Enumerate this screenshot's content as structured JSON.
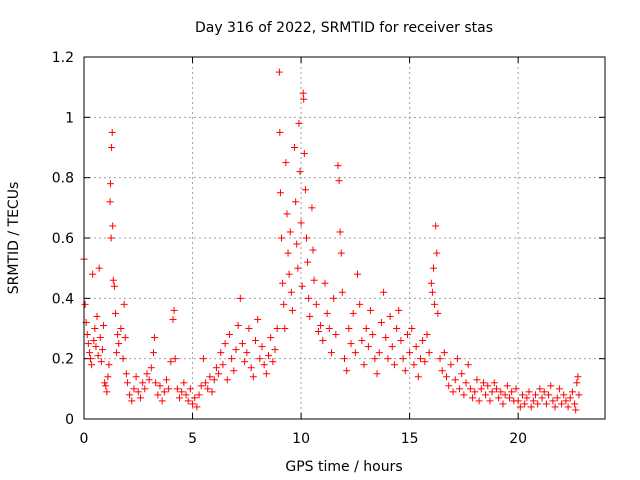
{
  "chart_data": {
    "type": "scatter",
    "title": "Day 316 of 2022, SRMTID for receiver stas",
    "xlabel": "GPS time / hours",
    "ylabel": "SRMTID / TECUs",
    "xlim": [
      0,
      24
    ],
    "ylim": [
      0,
      1.2
    ],
    "xticks": [
      0,
      5,
      10,
      15,
      20
    ],
    "xtick_labels": [
      "0",
      "5",
      "10",
      "15",
      "20"
    ],
    "yticks": [
      0,
      0.2,
      0.4,
      0.6,
      0.8,
      1.0,
      1.2
    ],
    "ytick_labels": [
      "0",
      "0.2",
      "0.4",
      "0.6",
      "0.8",
      "1",
      "1.2"
    ],
    "grid": true,
    "marker": "+",
    "color": "#ff0000",
    "series": [
      {
        "name": "SRMTID",
        "points": [
          [
            0.0,
            0.53
          ],
          [
            0.05,
            0.38
          ],
          [
            0.1,
            0.32
          ],
          [
            0.15,
            0.28
          ],
          [
            0.2,
            0.25
          ],
          [
            0.25,
            0.22
          ],
          [
            0.3,
            0.2
          ],
          [
            0.35,
            0.18
          ],
          [
            0.4,
            0.48
          ],
          [
            0.45,
            0.26
          ],
          [
            0.5,
            0.3
          ],
          [
            0.55,
            0.24
          ],
          [
            0.6,
            0.34
          ],
          [
            0.65,
            0.21
          ],
          [
            0.7,
            0.5
          ],
          [
            0.75,
            0.27
          ],
          [
            0.8,
            0.19
          ],
          [
            0.85,
            0.23
          ],
          [
            0.9,
            0.31
          ],
          [
            0.95,
            0.12
          ],
          [
            1.0,
            0.11
          ],
          [
            1.05,
            0.09
          ],
          [
            1.1,
            0.14
          ],
          [
            1.15,
            0.18
          ],
          [
            1.2,
            0.72
          ],
          [
            1.22,
            0.78
          ],
          [
            1.25,
            0.6
          ],
          [
            1.27,
            0.9
          ],
          [
            1.3,
            0.95
          ],
          [
            1.32,
            0.64
          ],
          [
            1.35,
            0.46
          ],
          [
            1.4,
            0.44
          ],
          [
            1.45,
            0.35
          ],
          [
            1.5,
            0.22
          ],
          [
            1.55,
            0.28
          ],
          [
            1.6,
            0.25
          ],
          [
            1.7,
            0.3
          ],
          [
            1.8,
            0.2
          ],
          [
            1.85,
            0.38
          ],
          [
            1.9,
            0.27
          ],
          [
            1.95,
            0.15
          ],
          [
            2.0,
            0.12
          ],
          [
            2.1,
            0.08
          ],
          [
            2.2,
            0.06
          ],
          [
            2.3,
            0.1
          ],
          [
            2.4,
            0.14
          ],
          [
            2.5,
            0.09
          ],
          [
            2.6,
            0.07
          ],
          [
            2.7,
            0.12
          ],
          [
            2.8,
            0.1
          ],
          [
            2.9,
            0.15
          ],
          [
            3.0,
            0.13
          ],
          [
            3.1,
            0.17
          ],
          [
            3.2,
            0.22
          ],
          [
            3.25,
            0.27
          ],
          [
            3.3,
            0.12
          ],
          [
            3.4,
            0.08
          ],
          [
            3.5,
            0.11
          ],
          [
            3.6,
            0.06
          ],
          [
            3.7,
            0.09
          ],
          [
            3.8,
            0.13
          ],
          [
            3.9,
            0.1
          ],
          [
            4.0,
            0.19
          ],
          [
            4.1,
            0.33
          ],
          [
            4.15,
            0.36
          ],
          [
            4.2,
            0.2
          ],
          [
            4.3,
            0.1
          ],
          [
            4.4,
            0.07
          ],
          [
            4.5,
            0.09
          ],
          [
            4.6,
            0.12
          ],
          [
            4.7,
            0.08
          ],
          [
            4.8,
            0.06
          ],
          [
            4.9,
            0.1
          ],
          [
            5.0,
            0.05
          ],
          [
            5.1,
            0.07
          ],
          [
            5.2,
            0.04
          ],
          [
            5.3,
            0.08
          ],
          [
            5.4,
            0.11
          ],
          [
            5.5,
            0.2
          ],
          [
            5.6,
            0.12
          ],
          [
            5.7,
            0.1
          ],
          [
            5.8,
            0.14
          ],
          [
            5.9,
            0.09
          ],
          [
            6.0,
            0.13
          ],
          [
            6.1,
            0.17
          ],
          [
            6.2,
            0.15
          ],
          [
            6.3,
            0.22
          ],
          [
            6.4,
            0.18
          ],
          [
            6.5,
            0.25
          ],
          [
            6.6,
            0.13
          ],
          [
            6.7,
            0.28
          ],
          [
            6.8,
            0.2
          ],
          [
            6.9,
            0.16
          ],
          [
            7.0,
            0.23
          ],
          [
            7.1,
            0.31
          ],
          [
            7.2,
            0.4
          ],
          [
            7.3,
            0.25
          ],
          [
            7.4,
            0.19
          ],
          [
            7.5,
            0.22
          ],
          [
            7.6,
            0.3
          ],
          [
            7.7,
            0.17
          ],
          [
            7.8,
            0.14
          ],
          [
            7.9,
            0.26
          ],
          [
            8.0,
            0.33
          ],
          [
            8.1,
            0.2
          ],
          [
            8.2,
            0.24
          ],
          [
            8.3,
            0.18
          ],
          [
            8.4,
            0.15
          ],
          [
            8.5,
            0.21
          ],
          [
            8.6,
            0.27
          ],
          [
            8.7,
            0.19
          ],
          [
            8.8,
            0.23
          ],
          [
            8.9,
            0.3
          ],
          [
            9.0,
            1.15
          ],
          [
            9.02,
            0.95
          ],
          [
            9.05,
            0.75
          ],
          [
            9.1,
            0.6
          ],
          [
            9.15,
            0.45
          ],
          [
            9.2,
            0.38
          ],
          [
            9.25,
            0.3
          ],
          [
            9.3,
            0.85
          ],
          [
            9.35,
            0.68
          ],
          [
            9.4,
            0.55
          ],
          [
            9.45,
            0.48
          ],
          [
            9.5,
            0.62
          ],
          [
            9.55,
            0.42
          ],
          [
            9.6,
            0.36
          ],
          [
            9.7,
            0.9
          ],
          [
            9.75,
            0.72
          ],
          [
            9.8,
            0.58
          ],
          [
            9.85,
            0.5
          ],
          [
            9.9,
            0.98
          ],
          [
            9.95,
            0.82
          ],
          [
            10.0,
            0.65
          ],
          [
            10.05,
            0.44
          ],
          [
            10.1,
            1.08
          ],
          [
            10.12,
            1.06
          ],
          [
            10.15,
            0.88
          ],
          [
            10.2,
            0.76
          ],
          [
            10.25,
            0.6
          ],
          [
            10.3,
            0.52
          ],
          [
            10.35,
            0.4
          ],
          [
            10.4,
            0.34
          ],
          [
            10.5,
            0.7
          ],
          [
            10.55,
            0.56
          ],
          [
            10.6,
            0.46
          ],
          [
            10.7,
            0.38
          ],
          [
            10.8,
            0.29
          ],
          [
            10.9,
            0.31
          ],
          [
            11.0,
            0.26
          ],
          [
            11.1,
            0.45
          ],
          [
            11.2,
            0.35
          ],
          [
            11.3,
            0.3
          ],
          [
            11.4,
            0.22
          ],
          [
            11.5,
            0.4
          ],
          [
            11.6,
            0.28
          ],
          [
            11.7,
            0.84
          ],
          [
            11.75,
            0.79
          ],
          [
            11.8,
            0.62
          ],
          [
            11.85,
            0.55
          ],
          [
            11.9,
            0.42
          ],
          [
            12.0,
            0.2
          ],
          [
            12.1,
            0.16
          ],
          [
            12.2,
            0.3
          ],
          [
            12.3,
            0.25
          ],
          [
            12.4,
            0.35
          ],
          [
            12.5,
            0.22
          ],
          [
            12.6,
            0.48
          ],
          [
            12.7,
            0.38
          ],
          [
            12.8,
            0.26
          ],
          [
            12.9,
            0.18
          ],
          [
            13.0,
            0.3
          ],
          [
            13.1,
            0.24
          ],
          [
            13.2,
            0.36
          ],
          [
            13.3,
            0.28
          ],
          [
            13.4,
            0.2
          ],
          [
            13.5,
            0.15
          ],
          [
            13.6,
            0.22
          ],
          [
            13.7,
            0.32
          ],
          [
            13.8,
            0.42
          ],
          [
            13.9,
            0.27
          ],
          [
            14.0,
            0.2
          ],
          [
            14.1,
            0.34
          ],
          [
            14.2,
            0.24
          ],
          [
            14.3,
            0.18
          ],
          [
            14.4,
            0.3
          ],
          [
            14.5,
            0.36
          ],
          [
            14.6,
            0.26
          ],
          [
            14.7,
            0.2
          ],
          [
            14.8,
            0.16
          ],
          [
            14.9,
            0.28
          ],
          [
            15.0,
            0.22
          ],
          [
            15.1,
            0.3
          ],
          [
            15.2,
            0.18
          ],
          [
            15.3,
            0.24
          ],
          [
            15.4,
            0.14
          ],
          [
            15.5,
            0.2
          ],
          [
            15.6,
            0.26
          ],
          [
            15.7,
            0.19
          ],
          [
            15.8,
            0.28
          ],
          [
            15.9,
            0.22
          ],
          [
            16.0,
            0.45
          ],
          [
            16.05,
            0.42
          ],
          [
            16.1,
            0.5
          ],
          [
            16.15,
            0.38
          ],
          [
            16.2,
            0.64
          ],
          [
            16.25,
            0.55
          ],
          [
            16.3,
            0.35
          ],
          [
            16.4,
            0.2
          ],
          [
            16.5,
            0.16
          ],
          [
            16.6,
            0.22
          ],
          [
            16.7,
            0.14
          ],
          [
            16.8,
            0.11
          ],
          [
            16.9,
            0.18
          ],
          [
            17.0,
            0.09
          ],
          [
            17.1,
            0.13
          ],
          [
            17.2,
            0.2
          ],
          [
            17.3,
            0.1
          ],
          [
            17.4,
            0.15
          ],
          [
            17.5,
            0.08
          ],
          [
            17.6,
            0.12
          ],
          [
            17.7,
            0.18
          ],
          [
            17.8,
            0.1
          ],
          [
            17.9,
            0.07
          ],
          [
            18.0,
            0.09
          ],
          [
            18.1,
            0.13
          ],
          [
            18.2,
            0.06
          ],
          [
            18.3,
            0.1
          ],
          [
            18.4,
            0.12
          ],
          [
            18.5,
            0.08
          ],
          [
            18.6,
            0.11
          ],
          [
            18.7,
            0.06
          ],
          [
            18.8,
            0.09
          ],
          [
            18.9,
            0.12
          ],
          [
            19.0,
            0.1
          ],
          [
            19.1,
            0.07
          ],
          [
            19.2,
            0.09
          ],
          [
            19.3,
            0.05
          ],
          [
            19.4,
            0.08
          ],
          [
            19.5,
            0.11
          ],
          [
            19.6,
            0.07
          ],
          [
            19.7,
            0.09
          ],
          [
            19.8,
            0.06
          ],
          [
            19.9,
            0.1
          ],
          [
            20.0,
            0.06
          ],
          [
            20.1,
            0.04
          ],
          [
            20.2,
            0.08
          ],
          [
            20.3,
            0.05
          ],
          [
            20.4,
            0.07
          ],
          [
            20.5,
            0.09
          ],
          [
            20.6,
            0.04
          ],
          [
            20.7,
            0.06
          ],
          [
            20.8,
            0.08
          ],
          [
            20.9,
            0.05
          ],
          [
            21.0,
            0.1
          ],
          [
            21.1,
            0.07
          ],
          [
            21.2,
            0.09
          ],
          [
            21.3,
            0.05
          ],
          [
            21.4,
            0.08
          ],
          [
            21.5,
            0.11
          ],
          [
            21.6,
            0.06
          ],
          [
            21.7,
            0.04
          ],
          [
            21.8,
            0.07
          ],
          [
            21.9,
            0.1
          ],
          [
            22.0,
            0.05
          ],
          [
            22.1,
            0.08
          ],
          [
            22.2,
            0.06
          ],
          [
            22.3,
            0.04
          ],
          [
            22.4,
            0.07
          ],
          [
            22.5,
            0.09
          ],
          [
            22.6,
            0.05
          ],
          [
            22.65,
            0.03
          ],
          [
            22.7,
            0.12
          ],
          [
            22.75,
            0.14
          ],
          [
            22.8,
            0.08
          ]
        ]
      }
    ]
  }
}
